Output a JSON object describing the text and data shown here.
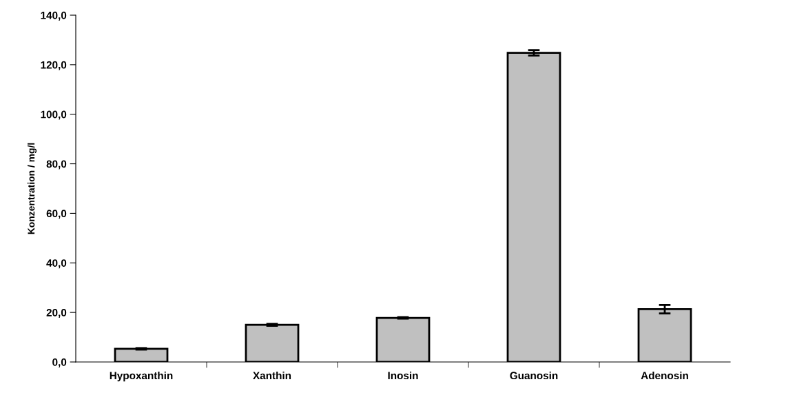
{
  "chart_data": {
    "type": "bar",
    "ylabel": "Konzentration / mg/l",
    "categories": [
      "Hypoxanthin",
      "Xanthin",
      "Inosin",
      "Guanosin",
      "Adenosin"
    ],
    "values": [
      5.3,
      15.0,
      17.8,
      124.8,
      21.3
    ],
    "errors": [
      0.3,
      0.4,
      0.3,
      1.1,
      1.7
    ],
    "color": "#c0c0c0",
    "ylim": [
      0,
      140
    ],
    "yticks": [
      {
        "value": 0,
        "label": "0,0"
      },
      {
        "value": 20,
        "label": "20,0"
      },
      {
        "value": 40,
        "label": "40,0"
      },
      {
        "value": 60,
        "label": "60,0"
      },
      {
        "value": 80,
        "label": "80,0"
      },
      {
        "value": 100,
        "label": "100,0"
      },
      {
        "value": 120,
        "label": "120,0"
      },
      {
        "value": 140,
        "label": "140,0"
      }
    ],
    "grid": false
  }
}
